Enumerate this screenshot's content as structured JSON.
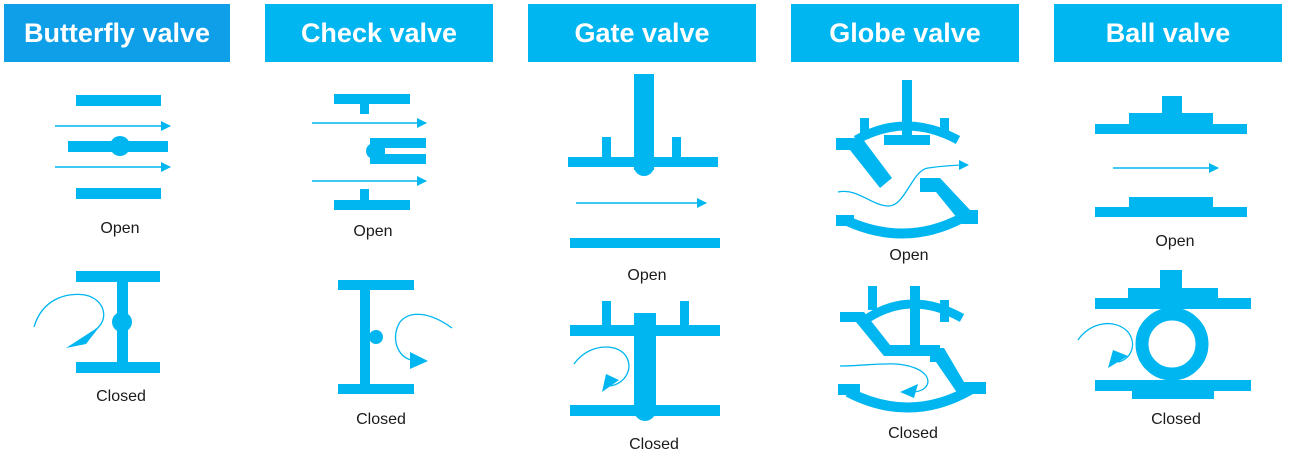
{
  "colors": {
    "header_bg": "#00b6f0",
    "header_bg_first": "#0f9fe8",
    "symbol": "#00b6f0",
    "label_text": "#1a1a1a"
  },
  "valves": [
    {
      "title": "Butterfly valve",
      "open_label": "Open",
      "closed_label": "Closed"
    },
    {
      "title": "Check valve",
      "open_label": "Open",
      "closed_label": "Closed"
    },
    {
      "title": "Gate valve",
      "open_label": "Open",
      "closed_label": "Closed"
    },
    {
      "title": "Globe valve",
      "open_label": "Open",
      "closed_label": "Closed"
    },
    {
      "title": "Ball valve",
      "open_label": "Open",
      "closed_label": "Closed"
    }
  ]
}
